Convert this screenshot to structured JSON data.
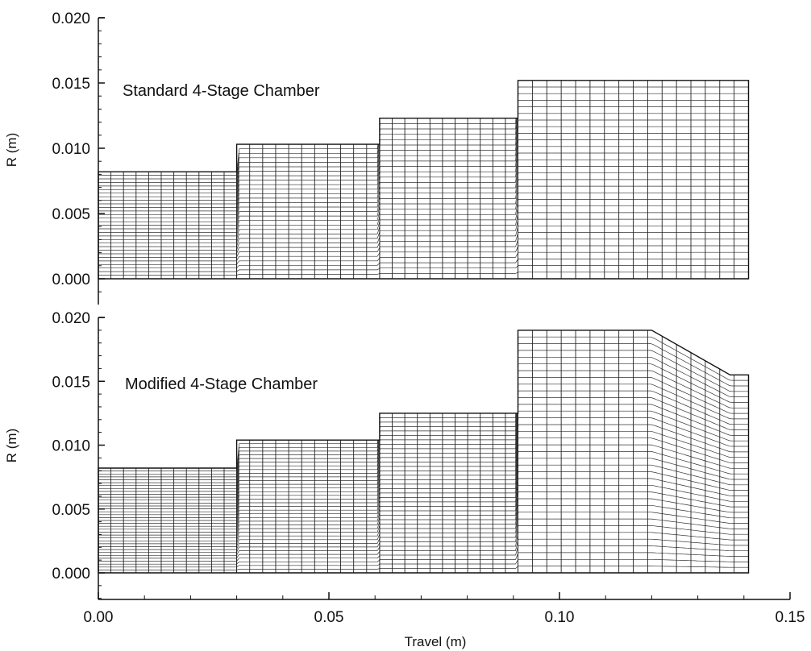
{
  "chart_data": [
    {
      "type": "area",
      "title": "Standard 4-Stage Chamber",
      "ylabel": "R (m)",
      "xlabel": "",
      "xlim": [
        0,
        0.15
      ],
      "ylim": [
        0,
        0.02
      ],
      "yticks": [
        "0.000",
        "0.005",
        "0.010",
        "0.015",
        "0.020"
      ],
      "series": [
        {
          "x": [
            0,
            0.03,
            0.03,
            0.061,
            0.061,
            0.091,
            0.091,
            0.141
          ],
          "y": [
            0.0082,
            0.0082,
            0.0103,
            0.0103,
            0.0123,
            0.0123,
            0.0152,
            0.0152
          ]
        }
      ],
      "grid_columns_per_stage": [
        11,
        11,
        11,
        16
      ],
      "grid_rows": 30
    },
    {
      "type": "area",
      "title": "Modified 4-Stage Chamber",
      "ylabel": "R (m)",
      "xlabel": "Travel (m)",
      "xlim": [
        0,
        0.15
      ],
      "ylim": [
        0,
        0.02
      ],
      "xticks": [
        "0.00",
        "0.05",
        "0.10",
        "0.15"
      ],
      "yticks": [
        "0.000",
        "0.005",
        "0.010",
        "0.015",
        "0.020"
      ],
      "series": [
        {
          "x": [
            0,
            0.03,
            0.03,
            0.061,
            0.061,
            0.091,
            0.091,
            0.12,
            0.137,
            0.137,
            0.141
          ],
          "y": [
            0.0082,
            0.0082,
            0.0104,
            0.0104,
            0.0125,
            0.0125,
            0.019,
            0.019,
            0.0155,
            0.0155,
            0.0155
          ]
        }
      ],
      "grid_columns_per_stage": [
        11,
        11,
        11,
        16
      ],
      "grid_rows": 36
    }
  ]
}
